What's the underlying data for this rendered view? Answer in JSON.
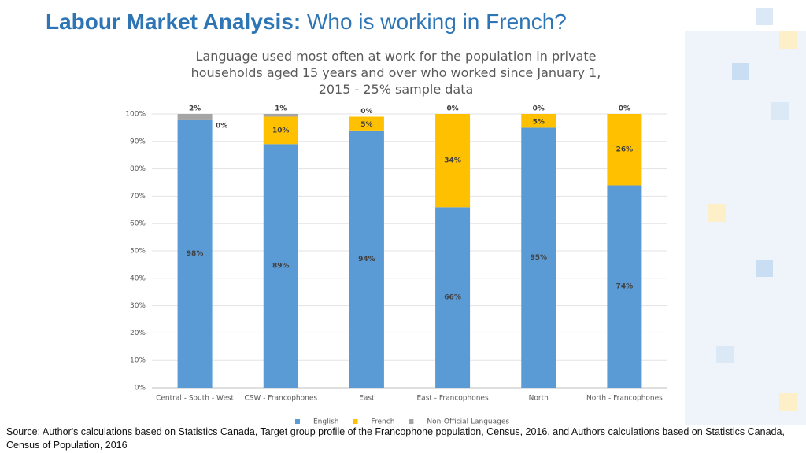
{
  "header": {
    "lead": "Labour Market Analysis:",
    "title": "Who is working in French?"
  },
  "chart_data": {
    "type": "stacked_bar",
    "title": "Language used most often at work for the population in private households aged 15 years and over who worked since January 1, 2015 - 25% sample data",
    "categories": [
      "Central - South - West",
      "CSW - Francophones",
      "East",
      "East - Francophones",
      "North",
      "North - Francophones"
    ],
    "series": [
      {
        "name": "English",
        "color": "#5b9bd5",
        "values": [
          98,
          89,
          94,
          66,
          95,
          74
        ],
        "value_labels": [
          "98%",
          "89%",
          "94%",
          "66%",
          "95%",
          "74%"
        ]
      },
      {
        "name": "French",
        "color": "#ffc000",
        "values": [
          0,
          10,
          5,
          34,
          5,
          26
        ],
        "value_labels": [
          "0%",
          "10%",
          "5%",
          "34%",
          "5%",
          "26%"
        ]
      },
      {
        "name": "Non-Official Languages",
        "color": "#a5a5a5",
        "values": [
          2,
          1,
          0,
          0,
          0,
          0
        ],
        "value_labels": [
          "2%",
          "1%",
          "0%",
          "0%",
          "0%",
          "0%"
        ]
      }
    ],
    "ylim": [
      0,
      100
    ],
    "yticks": [
      {
        "value": 0,
        "label": "0%"
      },
      {
        "value": 10,
        "label": "10%"
      },
      {
        "value": 20,
        "label": "20%"
      },
      {
        "value": 30,
        "label": "30%"
      },
      {
        "value": 40,
        "label": "40%"
      },
      {
        "value": 50,
        "label": "50%"
      },
      {
        "value": 60,
        "label": "60%"
      },
      {
        "value": 70,
        "label": "70%"
      },
      {
        "value": 80,
        "label": "80%"
      },
      {
        "value": 90,
        "label": "90%"
      },
      {
        "value": 100,
        "label": "100%"
      }
    ],
    "grid": true,
    "legend": "bottom"
  },
  "source": "Source: Author's calculations based on Statistics Canada, Target group profile of the Francophone population, Census, 2016, and Authors calculations based on Statistics Canada, Census of Population, 2016"
}
